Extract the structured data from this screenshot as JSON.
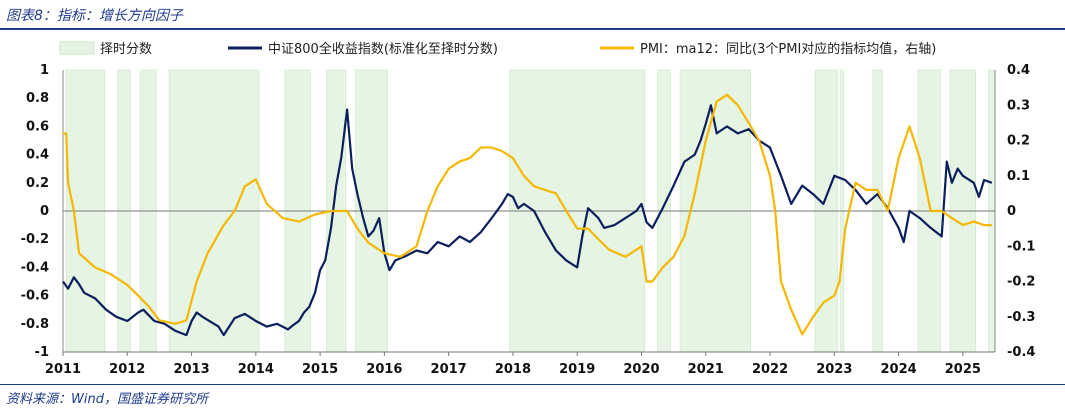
{
  "header": {
    "title": "图表8：指标：增长方向因子"
  },
  "footer": {
    "source": "资料来源：Wind，国盛证券研究所"
  },
  "chart_data": {
    "type": "line",
    "title": "",
    "legend_placement": "top",
    "grid": false,
    "x_axis": {
      "ticks": [
        "2011",
        "2012",
        "2013",
        "2014",
        "2015",
        "2016",
        "2017",
        "2018",
        "2019",
        "2020",
        "2021",
        "2022",
        "2023",
        "2024",
        "2025"
      ],
      "range": [
        2011.0,
        2025.5
      ]
    },
    "y_left": {
      "range": [
        -1,
        1
      ],
      "ticks": [
        "1",
        "0.8",
        "0.6",
        "0.4",
        "0.2",
        "0",
        "-0.2",
        "-0.4",
        "-0.6",
        "-0.8",
        "-1"
      ]
    },
    "y_right": {
      "range": [
        -0.4,
        0.4
      ],
      "ticks": [
        "0.4",
        "0.3",
        "0.2",
        "0.1",
        "0",
        "-0.1",
        "-0.2",
        "-0.3",
        "-0.4"
      ]
    },
    "series": [
      {
        "name": "择时分数",
        "kind": "shaded_area",
        "color": "#e6f4e4",
        "intervals": [
          [
            2011.05,
            2011.65
          ],
          [
            2011.85,
            2012.05
          ],
          [
            2012.2,
            2012.45
          ],
          [
            2012.65,
            2014.05
          ],
          [
            2014.45,
            2014.85
          ],
          [
            2015.1,
            2015.4
          ],
          [
            2015.55,
            2016.05
          ],
          [
            2017.95,
            2020.05
          ],
          [
            2020.25,
            2020.45
          ],
          [
            2020.6,
            2021.7
          ],
          [
            2022.7,
            2023.05
          ],
          [
            2023.1,
            2023.15
          ],
          [
            2023.6,
            2023.75
          ],
          [
            2024.3,
            2024.65
          ],
          [
            2024.8,
            2025.2
          ],
          [
            2025.4,
            2025.5
          ]
        ]
      },
      {
        "name": "中证800全收益指数(标准化至择时分数)",
        "axis": "left",
        "color": "#0b1f5c",
        "points": [
          [
            2011.0,
            -0.5
          ],
          [
            2011.08,
            -0.55
          ],
          [
            2011.17,
            -0.47
          ],
          [
            2011.25,
            -0.52
          ],
          [
            2011.33,
            -0.58
          ],
          [
            2011.5,
            -0.62
          ],
          [
            2011.67,
            -0.7
          ],
          [
            2011.83,
            -0.75
          ],
          [
            2012.0,
            -0.78
          ],
          [
            2012.17,
            -0.72
          ],
          [
            2012.25,
            -0.7
          ],
          [
            2012.42,
            -0.78
          ],
          [
            2012.58,
            -0.8
          ],
          [
            2012.75,
            -0.85
          ],
          [
            2012.92,
            -0.88
          ],
          [
            2013.0,
            -0.78
          ],
          [
            2013.08,
            -0.72
          ],
          [
            2013.17,
            -0.75
          ],
          [
            2013.42,
            -0.82
          ],
          [
            2013.5,
            -0.88
          ],
          [
            2013.67,
            -0.76
          ],
          [
            2013.83,
            -0.73
          ],
          [
            2014.0,
            -0.78
          ],
          [
            2014.17,
            -0.82
          ],
          [
            2014.33,
            -0.8
          ],
          [
            2014.5,
            -0.84
          ],
          [
            2014.58,
            -0.81
          ],
          [
            2014.67,
            -0.78
          ],
          [
            2014.75,
            -0.72
          ],
          [
            2014.83,
            -0.68
          ],
          [
            2014.92,
            -0.58
          ],
          [
            2015.0,
            -0.42
          ],
          [
            2015.08,
            -0.35
          ],
          [
            2015.17,
            -0.12
          ],
          [
            2015.25,
            0.18
          ],
          [
            2015.33,
            0.38
          ],
          [
            2015.42,
            0.72
          ],
          [
            2015.5,
            0.3
          ],
          [
            2015.58,
            0.12
          ],
          [
            2015.67,
            -0.05
          ],
          [
            2015.75,
            -0.18
          ],
          [
            2015.83,
            -0.14
          ],
          [
            2015.92,
            -0.05
          ],
          [
            2016.0,
            -0.3
          ],
          [
            2016.08,
            -0.42
          ],
          [
            2016.17,
            -0.35
          ],
          [
            2016.33,
            -0.32
          ],
          [
            2016.5,
            -0.28
          ],
          [
            2016.67,
            -0.3
          ],
          [
            2016.83,
            -0.22
          ],
          [
            2017.0,
            -0.25
          ],
          [
            2017.17,
            -0.18
          ],
          [
            2017.33,
            -0.22
          ],
          [
            2017.5,
            -0.15
          ],
          [
            2017.67,
            -0.05
          ],
          [
            2017.83,
            0.05
          ],
          [
            2017.92,
            0.12
          ],
          [
            2018.0,
            0.1
          ],
          [
            2018.08,
            0.02
          ],
          [
            2018.17,
            0.05
          ],
          [
            2018.33,
            0.0
          ],
          [
            2018.5,
            -0.15
          ],
          [
            2018.67,
            -0.28
          ],
          [
            2018.83,
            -0.35
          ],
          [
            2019.0,
            -0.4
          ],
          [
            2019.08,
            -0.18
          ],
          [
            2019.17,
            0.02
          ],
          [
            2019.33,
            -0.05
          ],
          [
            2019.42,
            -0.12
          ],
          [
            2019.58,
            -0.1
          ],
          [
            2019.75,
            -0.05
          ],
          [
            2019.92,
            0.0
          ],
          [
            2020.0,
            0.05
          ],
          [
            2020.08,
            -0.08
          ],
          [
            2020.17,
            -0.12
          ],
          [
            2020.33,
            0.02
          ],
          [
            2020.5,
            0.18
          ],
          [
            2020.67,
            0.35
          ],
          [
            2020.83,
            0.4
          ],
          [
            2020.92,
            0.5
          ],
          [
            2021.0,
            0.62
          ],
          [
            2021.08,
            0.75
          ],
          [
            2021.17,
            0.55
          ],
          [
            2021.33,
            0.6
          ],
          [
            2021.5,
            0.55
          ],
          [
            2021.67,
            0.58
          ],
          [
            2021.83,
            0.5
          ],
          [
            2022.0,
            0.45
          ],
          [
            2022.17,
            0.25
          ],
          [
            2022.33,
            0.05
          ],
          [
            2022.5,
            0.18
          ],
          [
            2022.67,
            0.12
          ],
          [
            2022.83,
            0.05
          ],
          [
            2023.0,
            0.25
          ],
          [
            2023.17,
            0.22
          ],
          [
            2023.33,
            0.15
          ],
          [
            2023.5,
            0.05
          ],
          [
            2023.67,
            0.12
          ],
          [
            2023.83,
            0.02
          ],
          [
            2024.0,
            -0.12
          ],
          [
            2024.08,
            -0.22
          ],
          [
            2024.17,
            0.0
          ],
          [
            2024.33,
            -0.05
          ],
          [
            2024.5,
            -0.12
          ],
          [
            2024.67,
            -0.18
          ],
          [
            2024.75,
            0.35
          ],
          [
            2024.83,
            0.2
          ],
          [
            2024.92,
            0.3
          ],
          [
            2025.0,
            0.25
          ],
          [
            2025.17,
            0.2
          ],
          [
            2025.25,
            0.1
          ],
          [
            2025.33,
            0.22
          ],
          [
            2025.45,
            0.2
          ]
        ]
      },
      {
        "name": "PMI：ma12：同比(3个PMI对应的指标均值，右轴)",
        "axis": "right",
        "color": "#f5b800",
        "points": [
          [
            2011.0,
            0.22
          ],
          [
            2011.05,
            0.22
          ],
          [
            2011.08,
            0.08
          ],
          [
            2011.17,
            0.0
          ],
          [
            2011.25,
            -0.12
          ],
          [
            2011.5,
            -0.16
          ],
          [
            2011.75,
            -0.18
          ],
          [
            2012.0,
            -0.21
          ],
          [
            2012.17,
            -0.24
          ],
          [
            2012.33,
            -0.27
          ],
          [
            2012.5,
            -0.31
          ],
          [
            2012.75,
            -0.32
          ],
          [
            2012.92,
            -0.31
          ],
          [
            2013.08,
            -0.2
          ],
          [
            2013.25,
            -0.12
          ],
          [
            2013.5,
            -0.04
          ],
          [
            2013.67,
            0.0
          ],
          [
            2013.83,
            0.07
          ],
          [
            2014.0,
            0.09
          ],
          [
            2014.17,
            0.02
          ],
          [
            2014.42,
            -0.02
          ],
          [
            2014.67,
            -0.03
          ],
          [
            2014.92,
            -0.01
          ],
          [
            2015.17,
            0.0
          ],
          [
            2015.42,
            0.0
          ],
          [
            2015.58,
            -0.05
          ],
          [
            2015.75,
            -0.09
          ],
          [
            2016.0,
            -0.12
          ],
          [
            2016.25,
            -0.13
          ],
          [
            2016.5,
            -0.1
          ],
          [
            2016.67,
            0.0
          ],
          [
            2016.83,
            0.07
          ],
          [
            2017.0,
            0.12
          ],
          [
            2017.17,
            0.14
          ],
          [
            2017.33,
            0.15
          ],
          [
            2017.5,
            0.18
          ],
          [
            2017.67,
            0.18
          ],
          [
            2017.83,
            0.17
          ],
          [
            2018.0,
            0.15
          ],
          [
            2018.17,
            0.1
          ],
          [
            2018.33,
            0.07
          ],
          [
            2018.5,
            0.06
          ],
          [
            2018.67,
            0.05
          ],
          [
            2018.83,
            0.0
          ],
          [
            2019.0,
            -0.05
          ],
          [
            2019.17,
            -0.05
          ],
          [
            2019.33,
            -0.08
          ],
          [
            2019.5,
            -0.11
          ],
          [
            2019.75,
            -0.13
          ],
          [
            2020.0,
            -0.1
          ],
          [
            2020.08,
            -0.2
          ],
          [
            2020.17,
            -0.2
          ],
          [
            2020.33,
            -0.16
          ],
          [
            2020.5,
            -0.13
          ],
          [
            2020.67,
            -0.07
          ],
          [
            2020.83,
            0.05
          ],
          [
            2021.0,
            0.2
          ],
          [
            2021.17,
            0.31
          ],
          [
            2021.33,
            0.33
          ],
          [
            2021.5,
            0.3
          ],
          [
            2021.67,
            0.25
          ],
          [
            2021.83,
            0.2
          ],
          [
            2022.0,
            0.1
          ],
          [
            2022.08,
            0.0
          ],
          [
            2022.17,
            -0.2
          ],
          [
            2022.33,
            -0.28
          ],
          [
            2022.5,
            -0.35
          ],
          [
            2022.67,
            -0.3
          ],
          [
            2022.83,
            -0.26
          ],
          [
            2023.0,
            -0.24
          ],
          [
            2023.08,
            -0.2
          ],
          [
            2023.17,
            -0.05
          ],
          [
            2023.33,
            0.08
          ],
          [
            2023.5,
            0.06
          ],
          [
            2023.67,
            0.06
          ],
          [
            2023.83,
            0.0
          ],
          [
            2024.0,
            0.15
          ],
          [
            2024.17,
            0.24
          ],
          [
            2024.33,
            0.15
          ],
          [
            2024.5,
            0.0
          ],
          [
            2024.67,
            0.0
          ],
          [
            2024.83,
            -0.02
          ],
          [
            2025.0,
            -0.04
          ],
          [
            2025.17,
            -0.03
          ],
          [
            2025.33,
            -0.04
          ],
          [
            2025.45,
            -0.04
          ]
        ]
      }
    ]
  }
}
